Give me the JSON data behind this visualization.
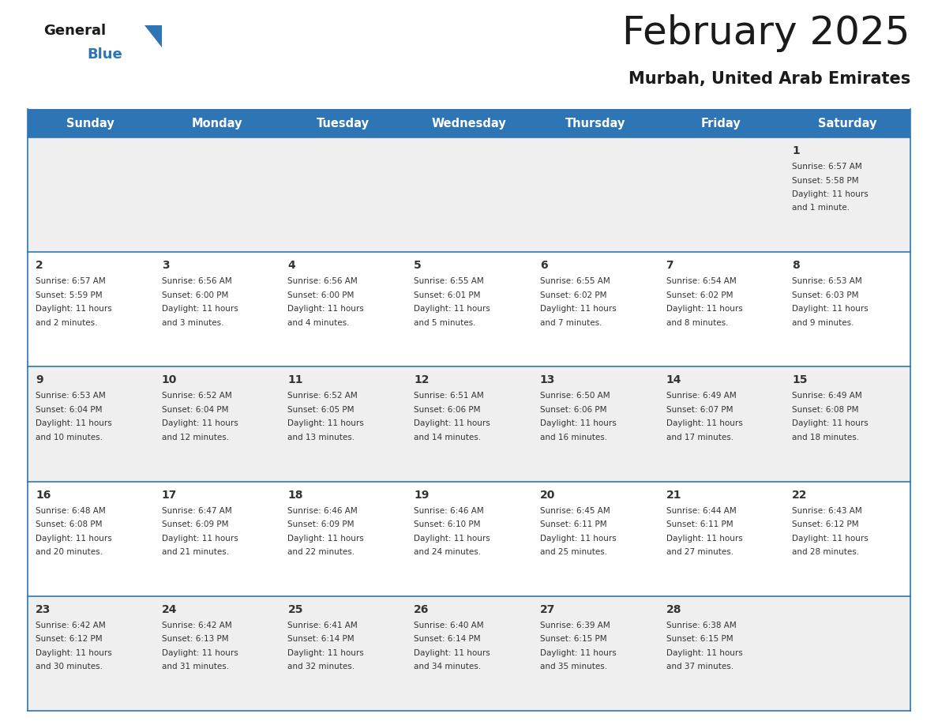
{
  "title": "February 2025",
  "subtitle": "Murbah, United Arab Emirates",
  "header_bg": "#2E75B6",
  "header_text_color": "#FFFFFF",
  "cell_bg_odd": "#EFEFEF",
  "cell_bg_even": "#FFFFFF",
  "border_color": "#2E75B6",
  "text_color": "#333333",
  "weekdays": [
    "Sunday",
    "Monday",
    "Tuesday",
    "Wednesday",
    "Thursday",
    "Friday",
    "Saturday"
  ],
  "calendar": [
    [
      {
        "day": "",
        "sunrise": "",
        "sunset": "",
        "daylight": ""
      },
      {
        "day": "",
        "sunrise": "",
        "sunset": "",
        "daylight": ""
      },
      {
        "day": "",
        "sunrise": "",
        "sunset": "",
        "daylight": ""
      },
      {
        "day": "",
        "sunrise": "",
        "sunset": "",
        "daylight": ""
      },
      {
        "day": "",
        "sunrise": "",
        "sunset": "",
        "daylight": ""
      },
      {
        "day": "",
        "sunrise": "",
        "sunset": "",
        "daylight": ""
      },
      {
        "day": "1",
        "sunrise": "6:57 AM",
        "sunset": "5:58 PM",
        "daylight": "11 hours and 1 minute."
      }
    ],
    [
      {
        "day": "2",
        "sunrise": "6:57 AM",
        "sunset": "5:59 PM",
        "daylight": "11 hours and 2 minutes."
      },
      {
        "day": "3",
        "sunrise": "6:56 AM",
        "sunset": "6:00 PM",
        "daylight": "11 hours and 3 minutes."
      },
      {
        "day": "4",
        "sunrise": "6:56 AM",
        "sunset": "6:00 PM",
        "daylight": "11 hours and 4 minutes."
      },
      {
        "day": "5",
        "sunrise": "6:55 AM",
        "sunset": "6:01 PM",
        "daylight": "11 hours and 5 minutes."
      },
      {
        "day": "6",
        "sunrise": "6:55 AM",
        "sunset": "6:02 PM",
        "daylight": "11 hours and 7 minutes."
      },
      {
        "day": "7",
        "sunrise": "6:54 AM",
        "sunset": "6:02 PM",
        "daylight": "11 hours and 8 minutes."
      },
      {
        "day": "8",
        "sunrise": "6:53 AM",
        "sunset": "6:03 PM",
        "daylight": "11 hours and 9 minutes."
      }
    ],
    [
      {
        "day": "9",
        "sunrise": "6:53 AM",
        "sunset": "6:04 PM",
        "daylight": "11 hours and 10 minutes."
      },
      {
        "day": "10",
        "sunrise": "6:52 AM",
        "sunset": "6:04 PM",
        "daylight": "11 hours and 12 minutes."
      },
      {
        "day": "11",
        "sunrise": "6:52 AM",
        "sunset": "6:05 PM",
        "daylight": "11 hours and 13 minutes."
      },
      {
        "day": "12",
        "sunrise": "6:51 AM",
        "sunset": "6:06 PM",
        "daylight": "11 hours and 14 minutes."
      },
      {
        "day": "13",
        "sunrise": "6:50 AM",
        "sunset": "6:06 PM",
        "daylight": "11 hours and 16 minutes."
      },
      {
        "day": "14",
        "sunrise": "6:49 AM",
        "sunset": "6:07 PM",
        "daylight": "11 hours and 17 minutes."
      },
      {
        "day": "15",
        "sunrise": "6:49 AM",
        "sunset": "6:08 PM",
        "daylight": "11 hours and 18 minutes."
      }
    ],
    [
      {
        "day": "16",
        "sunrise": "6:48 AM",
        "sunset": "6:08 PM",
        "daylight": "11 hours and 20 minutes."
      },
      {
        "day": "17",
        "sunrise": "6:47 AM",
        "sunset": "6:09 PM",
        "daylight": "11 hours and 21 minutes."
      },
      {
        "day": "18",
        "sunrise": "6:46 AM",
        "sunset": "6:09 PM",
        "daylight": "11 hours and 22 minutes."
      },
      {
        "day": "19",
        "sunrise": "6:46 AM",
        "sunset": "6:10 PM",
        "daylight": "11 hours and 24 minutes."
      },
      {
        "day": "20",
        "sunrise": "6:45 AM",
        "sunset": "6:11 PM",
        "daylight": "11 hours and 25 minutes."
      },
      {
        "day": "21",
        "sunrise": "6:44 AM",
        "sunset": "6:11 PM",
        "daylight": "11 hours and 27 minutes."
      },
      {
        "day": "22",
        "sunrise": "6:43 AM",
        "sunset": "6:12 PM",
        "daylight": "11 hours and 28 minutes."
      }
    ],
    [
      {
        "day": "23",
        "sunrise": "6:42 AM",
        "sunset": "6:12 PM",
        "daylight": "11 hours and 30 minutes."
      },
      {
        "day": "24",
        "sunrise": "6:42 AM",
        "sunset": "6:13 PM",
        "daylight": "11 hours and 31 minutes."
      },
      {
        "day": "25",
        "sunrise": "6:41 AM",
        "sunset": "6:14 PM",
        "daylight": "11 hours and 32 minutes."
      },
      {
        "day": "26",
        "sunrise": "6:40 AM",
        "sunset": "6:14 PM",
        "daylight": "11 hours and 34 minutes."
      },
      {
        "day": "27",
        "sunrise": "6:39 AM",
        "sunset": "6:15 PM",
        "daylight": "11 hours and 35 minutes."
      },
      {
        "day": "28",
        "sunrise": "6:38 AM",
        "sunset": "6:15 PM",
        "daylight": "11 hours and 37 minutes."
      },
      {
        "day": "",
        "sunrise": "",
        "sunset": "",
        "daylight": ""
      }
    ]
  ],
  "logo_general_color": "#1a1a1a",
  "logo_blue_color": "#2E75B6",
  "logo_triangle_color": "#2E75B6"
}
